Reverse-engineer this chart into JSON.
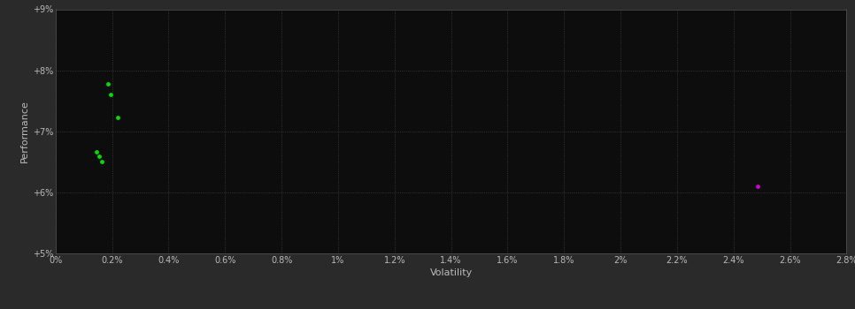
{
  "background_color": "#2a2a2a",
  "plot_bg_color": "#0d0d0d",
  "grid_color": "#404040",
  "text_color": "#bbbbbb",
  "xlabel": "Volatility",
  "ylabel": "Performance",
  "xlim": [
    0.0,
    0.028
  ],
  "ylim": [
    0.05,
    0.09
  ],
  "xtick_vals": [
    0.0,
    0.002,
    0.004,
    0.006,
    0.008,
    0.01,
    0.012,
    0.014,
    0.016,
    0.018,
    0.02,
    0.022,
    0.024,
    0.026,
    0.028
  ],
  "xtick_labels": [
    "0%",
    "0.2%",
    "0.4%",
    "0.6%",
    "0.8%",
    "1%",
    "1.2%",
    "1.4%",
    "1.6%",
    "1.8%",
    "2%",
    "2.2%",
    "2.4%",
    "2.6%",
    "2.8%"
  ],
  "ytick_vals": [
    0.05,
    0.06,
    0.07,
    0.08,
    0.09
  ],
  "ytick_labels": [
    "+5%",
    "+6%",
    "+7%",
    "+8%",
    "+9%"
  ],
  "green_points": [
    [
      0.00185,
      0.0778
    ],
    [
      0.00195,
      0.076
    ],
    [
      0.0022,
      0.0723
    ],
    [
      0.00145,
      0.0667
    ],
    [
      0.00155,
      0.0659
    ],
    [
      0.00165,
      0.0651
    ]
  ],
  "magenta_points": [
    [
      0.02485,
      0.061
    ]
  ],
  "green_color": "#00dd00",
  "magenta_color": "#cc00cc",
  "dot_size": 12,
  "magenta_dot_size": 12
}
